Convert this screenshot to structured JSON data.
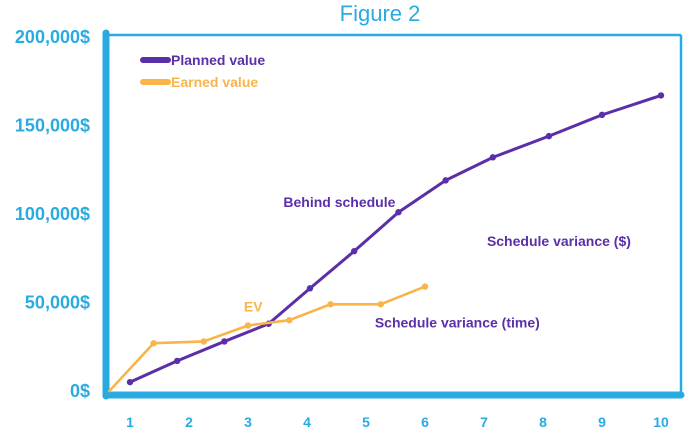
{
  "colors": {
    "accent": "#29abe2",
    "planned": "#5b2fa8",
    "earned": "#f9b44a",
    "annotation": "#5b2fa8",
    "ev_label": "#f9b44a"
  },
  "chart_data": {
    "type": "line",
    "title": "Figure 2",
    "xlabel": "",
    "ylabel": "",
    "xlim": [
      0.6,
      10.3
    ],
    "ylim": [
      0,
      200000
    ],
    "x_ticks": [
      "1",
      "2",
      "3",
      "4",
      "5",
      "6",
      "7",
      "8",
      "9",
      "10"
    ],
    "y_ticks": [
      {
        "value": 0,
        "label": "0$"
      },
      {
        "value": 50000,
        "label": "50,000$"
      },
      {
        "value": 100000,
        "label": "100,000$"
      },
      {
        "value": 150000,
        "label": "150,000$"
      },
      {
        "value": 200000,
        "label": "200,000$"
      }
    ],
    "grid": false,
    "legend_position": "top-left",
    "series": [
      {
        "name": "Planned value",
        "color": "#5b2fa8",
        "points": [
          {
            "x": 1.0,
            "y": 5000
          },
          {
            "x": 1.8,
            "y": 17000
          },
          {
            "x": 2.6,
            "y": 28000
          },
          {
            "x": 3.35,
            "y": 38000
          },
          {
            "x": 4.05,
            "y": 58000
          },
          {
            "x": 4.8,
            "y": 79000
          },
          {
            "x": 5.55,
            "y": 101000
          },
          {
            "x": 6.35,
            "y": 119000
          },
          {
            "x": 7.15,
            "y": 132000
          },
          {
            "x": 8.1,
            "y": 144000
          },
          {
            "x": 9.0,
            "y": 156000
          },
          {
            "x": 10.0,
            "y": 167000
          }
        ]
      },
      {
        "name": "Earned value",
        "color": "#f9b44a",
        "points": [
          {
            "x": 0.65,
            "y": 0
          },
          {
            "x": 1.4,
            "y": 27000
          },
          {
            "x": 2.25,
            "y": 28000
          },
          {
            "x": 3.0,
            "y": 37000
          },
          {
            "x": 3.7,
            "y": 40000
          },
          {
            "x": 4.4,
            "y": 49000
          },
          {
            "x": 5.25,
            "y": 49000
          },
          {
            "x": 6.0,
            "y": 59000
          }
        ]
      }
    ],
    "annotations": [
      {
        "text": "Behind schedule",
        "x": 3.6,
        "y": 104000,
        "color": "#5b2fa8"
      },
      {
        "text": "Schedule variance ($)",
        "x": 7.05,
        "y": 82000,
        "color": "#5b2fa8"
      },
      {
        "text": "Schedule variance (time)",
        "x": 5.15,
        "y": 36000,
        "color": "#5b2fa8"
      },
      {
        "text": "EV",
        "x": 2.93,
        "y": 45000,
        "color": "#f9b44a"
      }
    ]
  }
}
